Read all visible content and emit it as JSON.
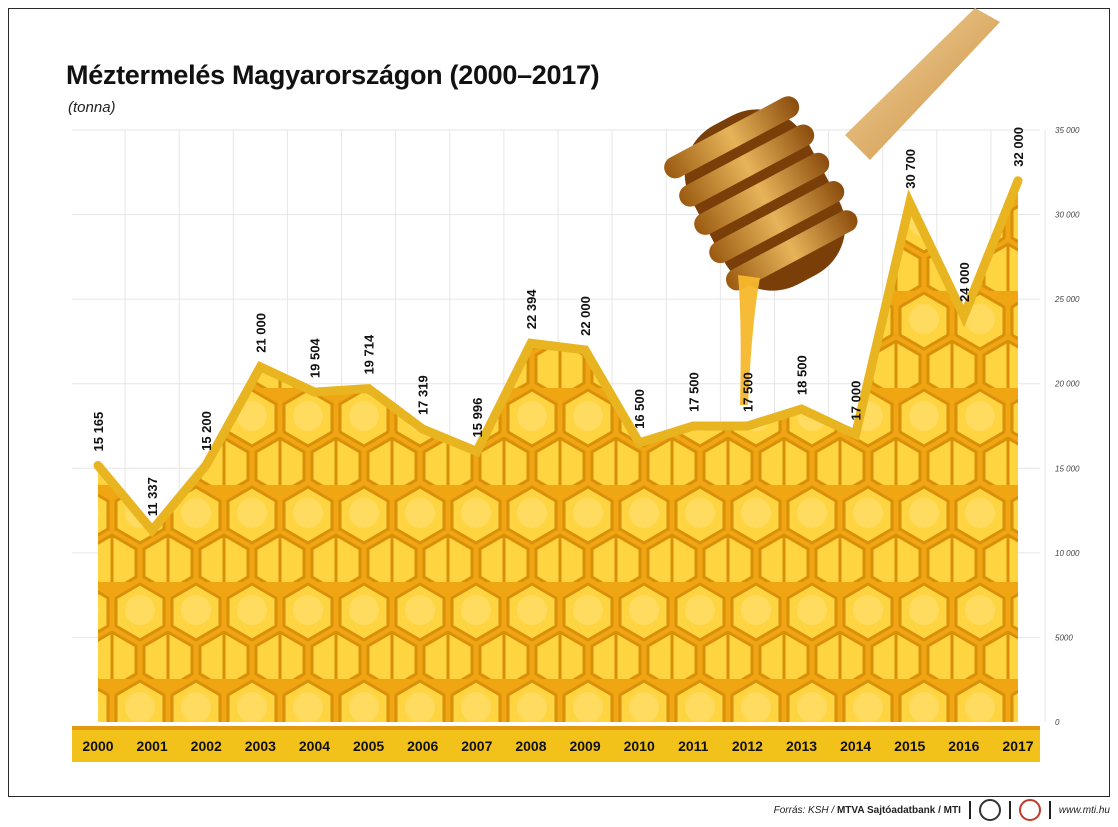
{
  "title": "Méztermelés Magyarországon (2000–2017)",
  "unit": "(tonna)",
  "footer": {
    "source_prefix": "Forrás: KSH / ",
    "source_bold": "MTVA Sajtóadatbank / MTI",
    "website": "www.mti.hu"
  },
  "colors": {
    "line": "#e8b420",
    "honey_light": "#ffd84a",
    "honey_dark": "#e29a10",
    "axis_band": "#f3c21a",
    "grid": "#e6e6e6"
  },
  "chart_data": {
    "type": "area",
    "title": "Méztermelés Magyarországon (2000–2017)",
    "ylabel": "(tonna)",
    "ylim": [
      0,
      35000
    ],
    "grid": true,
    "y_ticks": [
      0,
      5000,
      10000,
      15000,
      20000,
      25000,
      30000,
      35000
    ],
    "y_tick_labels": [
      "0",
      "5000",
      "10 000",
      "15 000",
      "20 000",
      "25 000",
      "30 000",
      "35 000"
    ],
    "y_axis_side": "right",
    "categories": [
      "2000",
      "2001",
      "2002",
      "2003",
      "2004",
      "2005",
      "2006",
      "2007",
      "2008",
      "2009",
      "2010",
      "2011",
      "2012",
      "2013",
      "2014",
      "2015",
      "2016",
      "2017"
    ],
    "values": [
      15165,
      11337,
      15200,
      21000,
      19504,
      19714,
      17319,
      15996,
      22394,
      22000,
      16500,
      17500,
      17500,
      18500,
      17000,
      30700,
      24000,
      32000
    ],
    "value_labels": [
      "15 165",
      "11 337",
      "15 200",
      "21 000",
      "19 504",
      "19 714",
      "17 319",
      "15 996",
      "22 394",
      "22 000",
      "16 500",
      "17 500",
      "17 500",
      "18 500",
      "17 000",
      "30 700",
      "24 000",
      "32 000"
    ]
  }
}
